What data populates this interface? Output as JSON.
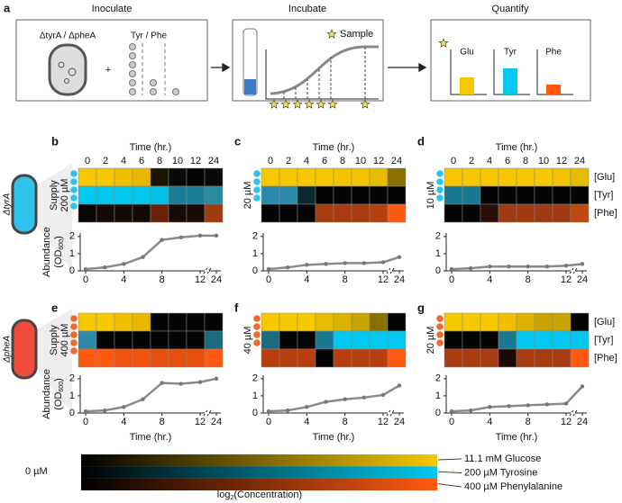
{
  "panel_a": {
    "label": "a",
    "steps": [
      "Inoculate",
      "Incubate",
      "Quantify"
    ],
    "strains": "ΔtyrA / ΔpheA",
    "supplements": "Tyr / Phe",
    "plus": "+",
    "sample": "Sample",
    "products": [
      "Glu",
      "Tyr",
      "Phe"
    ]
  },
  "resource_labels": [
    "[Glu]",
    "[Tyr]",
    "[Phe]"
  ],
  "rows": [
    {
      "strain": "ΔtyrA",
      "supply_label": "Supply",
      "ylabel": {
        "main": "Abundance",
        "open": "(OD",
        "sub": "600",
        "close": ")"
      },
      "dot_color": "#2ec4ee",
      "cell_color": "#2ec4ee",
      "panels": [
        {
          "label": "b",
          "supply": "200 µM",
          "time_label": "Time (hr.)",
          "times": [
            0,
            2,
            4,
            6,
            8,
            10,
            12,
            24
          ],
          "heatmap": [
            [
              "#f5c800",
              "#f5c800",
              "#f0c000",
              "#e8b800",
              "#1a1400",
              "#0a0a0a",
              "#050505",
              "#0a0a0a"
            ],
            [
              "#00c8ee",
              "#00c8ee",
              "#00c8ee",
              "#00c8ee",
              "#00c0e6",
              "#1a7c94",
              "#1a7c94",
              "#2a8aa0"
            ],
            [
              "#0a0505",
              "#140a05",
              "#140a05",
              "#140a05",
              "#6a2208",
              "#1a0a05",
              "#1a0a05",
              "#a03a10"
            ]
          ],
          "x": [
            0,
            2,
            4,
            6,
            8,
            10,
            12,
            24
          ],
          "values": [
            0.1,
            0.2,
            0.4,
            0.8,
            1.8,
            1.95,
            2.05,
            2.05
          ],
          "xticks": [
            0,
            4,
            8,
            12,
            24
          ],
          "ylim": [
            0,
            2.2
          ],
          "yticks": [
            0,
            1,
            2
          ]
        },
        {
          "label": "c",
          "supply": "20 µM",
          "time_label": "Time (hr.)",
          "times": [
            0,
            2,
            4,
            6,
            8,
            10,
            12,
            24
          ],
          "heatmap": [
            [
              "#f5c800",
              "#f5c800",
              "#f5c800",
              "#f5c800",
              "#f0c200",
              "#f0c200",
              "#e6bc00",
              "#8a7000"
            ],
            [
              "#2a8aa8",
              "#2a8aa8",
              "#0a2a30",
              "#050505",
              "#050505",
              "#050505",
              "#050505",
              "#050505"
            ],
            [
              "#050505",
              "#050505",
              "#050505",
              "#a83c10",
              "#a83c10",
              "#a83c10",
              "#b44010",
              "#ff5a10"
            ]
          ],
          "x": [
            0,
            2,
            4,
            6,
            8,
            10,
            12,
            24
          ],
          "values": [
            0.1,
            0.2,
            0.35,
            0.4,
            0.45,
            0.45,
            0.5,
            0.8
          ],
          "xticks": [
            0,
            4,
            8,
            12,
            24
          ],
          "ylim": [
            0,
            2.2
          ],
          "yticks": [
            0,
            1,
            2
          ]
        },
        {
          "label": "d",
          "supply": "10 µM",
          "time_label": "Time (hr.)",
          "times": [
            0,
            2,
            4,
            6,
            8,
            10,
            12,
            24
          ],
          "heatmap": [
            [
              "#f5c800",
              "#f5c800",
              "#f5c800",
              "#f5c800",
              "#f5c800",
              "#f5c800",
              "#f0c200",
              "#e6bc00"
            ],
            [
              "#1a7890",
              "#1a7890",
              "#050505",
              "#050505",
              "#050505",
              "#050505",
              "#050505",
              "#050505"
            ],
            [
              "#050505",
              "#050505",
              "#2a0e05",
              "#a03a10",
              "#a03a10",
              "#a03a10",
              "#a03a10",
              "#c04812"
            ]
          ],
          "x": [
            0,
            2,
            4,
            6,
            8,
            10,
            12,
            24
          ],
          "values": [
            0.1,
            0.15,
            0.25,
            0.25,
            0.25,
            0.25,
            0.3,
            0.4
          ],
          "xticks": [
            0,
            4,
            8,
            12,
            24
          ],
          "ylim": [
            0,
            2.2
          ],
          "yticks": [
            0,
            1,
            2
          ]
        }
      ]
    },
    {
      "strain": "ΔpheA",
      "supply_label": "Supply",
      "ylabel": {
        "main": "Abundance",
        "open": "(OD",
        "sub": "600",
        "close": ")"
      },
      "dot_color": "#f26a2a",
      "cell_color": "#ef4c3c",
      "panels": [
        {
          "label": "e",
          "supply": "400 µM",
          "xlabel": "Time (hr.)",
          "heatmap": [
            [
              "#f5c800",
              "#f5c800",
              "#f0c000",
              "#e8b800",
              "#050505",
              "#050505",
              "#050505",
              "#050505"
            ],
            [
              "#2a8aa8",
              "#050505",
              "#050505",
              "#050505",
              "#050505",
              "#050505",
              "#050505",
              "#1a6a80"
            ],
            [
              "#ff5a10",
              "#ff5a10",
              "#f25410",
              "#f25410",
              "#e85010",
              "#e85010",
              "#e85010",
              "#ff5a10"
            ]
          ],
          "x": [
            0,
            2,
            4,
            6,
            8,
            10,
            12,
            24
          ],
          "values": [
            0.1,
            0.15,
            0.35,
            0.8,
            1.75,
            1.7,
            1.8,
            2.0
          ],
          "xticks": [
            0,
            4,
            8,
            12,
            24
          ],
          "ylim": [
            0,
            2.2
          ],
          "yticks": [
            0,
            1,
            2
          ]
        },
        {
          "label": "f",
          "supply": "40 µM",
          "xlabel": "Time (hr.)",
          "heatmap": [
            [
              "#f5c800",
              "#f5c800",
              "#f5c800",
              "#e6bc00",
              "#dcb400",
              "#c8a400",
              "#8a7000",
              "#050505"
            ],
            [
              "#1a6a80",
              "#050505",
              "#050505",
              "#1a7890",
              "#00c8ee",
              "#00c8ee",
              "#00c8ee",
              "#00c8ee"
            ],
            [
              "#b84010",
              "#b84010",
              "#b84010",
              "#050505",
              "#b84010",
              "#b84010",
              "#b84010",
              "#ff5a10"
            ]
          ],
          "x": [
            0,
            2,
            4,
            6,
            8,
            10,
            12,
            24
          ],
          "values": [
            0.1,
            0.15,
            0.35,
            0.65,
            0.8,
            0.9,
            1.05,
            1.6
          ],
          "xticks": [
            0,
            4,
            8,
            12,
            24
          ],
          "ylim": [
            0,
            2.2
          ],
          "yticks": [
            0,
            1,
            2
          ]
        },
        {
          "label": "g",
          "supply": "20 µM",
          "xlabel": "Time (hr.)",
          "heatmap": [
            [
              "#f5c800",
              "#f5c800",
              "#f5c800",
              "#f0c000",
              "#dcb400",
              "#c8a400",
              "#c8a400",
              "#050505"
            ],
            [
              "#050505",
              "#050505",
              "#050505",
              "#1a7890",
              "#00c8ee",
              "#00c8ee",
              "#00c8ee",
              "#00c8ee"
            ],
            [
              "#a83c10",
              "#a83c10",
              "#a83c10",
              "#1a0a05",
              "#a83c10",
              "#a83c10",
              "#a83c10",
              "#ff5a10"
            ]
          ],
          "x": [
            0,
            2,
            4,
            6,
            8,
            10,
            12,
            24
          ],
          "values": [
            0.1,
            0.15,
            0.35,
            0.4,
            0.45,
            0.5,
            0.55,
            1.55
          ],
          "xticks": [
            0,
            4,
            8,
            12,
            24
          ],
          "ylim": [
            0,
            2.2
          ],
          "yticks": [
            0,
            1,
            2
          ]
        }
      ]
    }
  ],
  "colorbar": {
    "min_label": "0 µM",
    "labels": [
      "11.1 mM Glucose",
      "200 µM Tyrosine",
      "400 µM Phenylalanine"
    ],
    "colors": [
      "#f5c800",
      "#00c8ee",
      "#ff5a10"
    ],
    "xlabel": {
      "base": "log",
      "sub": "2",
      "rest": "(Concentration)"
    }
  }
}
